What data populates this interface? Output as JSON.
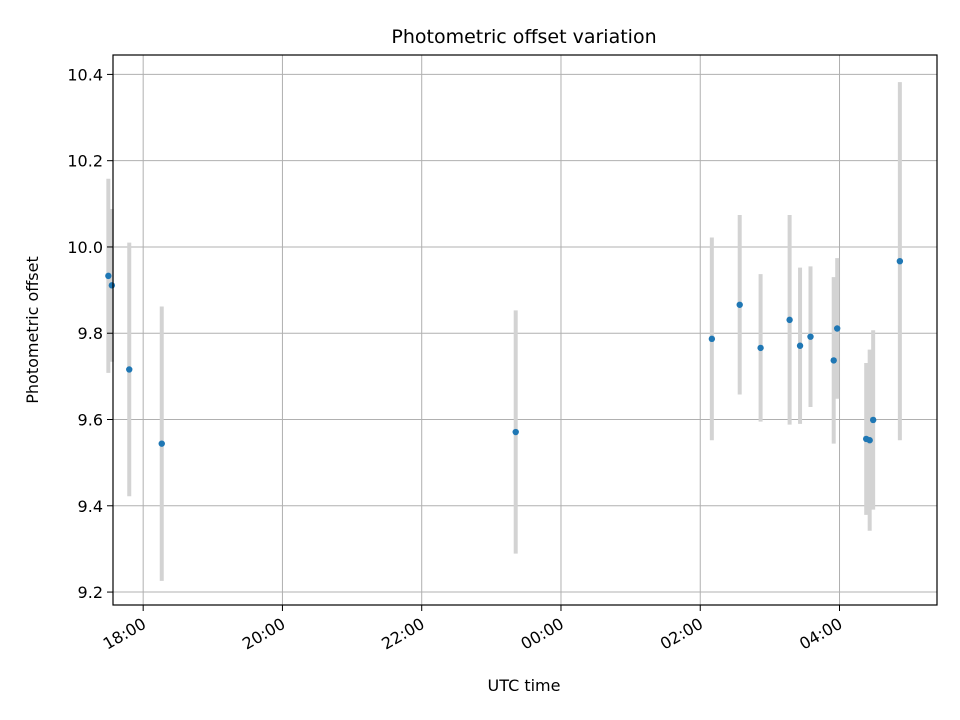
{
  "chart_data": {
    "type": "scatter",
    "title": "Photometric offset variation",
    "xlabel": "UTC time",
    "ylabel": "Photometric offset",
    "x_axis_type": "time",
    "xlim": [
      "17:34",
      "05:24"
    ],
    "ylim": [
      9.17,
      10.445
    ],
    "grid": true,
    "x_ticks": [
      {
        "time": "18:00",
        "label": "18:00"
      },
      {
        "time": "20:00",
        "label": "20:00"
      },
      {
        "time": "22:00",
        "label": "22:00"
      },
      {
        "time": "00:00",
        "label": "00:00"
      },
      {
        "time": "02:00",
        "label": "02:00"
      },
      {
        "time": "04:00",
        "label": "04:00"
      }
    ],
    "y_ticks": [
      {
        "value": 9.2,
        "label": "9.2"
      },
      {
        "value": 9.4,
        "label": "9.4"
      },
      {
        "value": 9.6,
        "label": "9.6"
      },
      {
        "value": 9.8,
        "label": "9.8"
      },
      {
        "value": 10.0,
        "label": "10.0"
      },
      {
        "value": 10.2,
        "label": "10.2"
      },
      {
        "value": 10.4,
        "label": "10.4"
      }
    ],
    "colors": {
      "point": "#1f77b4",
      "errorbar": "#d3d3d3",
      "grid": "#b0b0b0"
    },
    "points": [
      {
        "x": "17:30",
        "y": 9.933,
        "err": 0.225
      },
      {
        "x": "17:33",
        "y": 9.911,
        "err": 0.177
      },
      {
        "x": "17:48",
        "y": 9.716,
        "err": 0.294
      },
      {
        "x": "18:16",
        "y": 9.544,
        "err": 0.318
      },
      {
        "x": "23:21",
        "y": 9.571,
        "err": 0.282
      },
      {
        "x": "02:10",
        "y": 9.787,
        "err": 0.235
      },
      {
        "x": "02:34",
        "y": 9.866,
        "err": 0.208
      },
      {
        "x": "02:52",
        "y": 9.766,
        "err": 0.171
      },
      {
        "x": "03:17",
        "y": 9.831,
        "err": 0.243
      },
      {
        "x": "03:26",
        "y": 9.771,
        "err": 0.181
      },
      {
        "x": "03:35",
        "y": 9.792,
        "err": 0.163
      },
      {
        "x": "03:55",
        "y": 9.737,
        "err": 0.193
      },
      {
        "x": "03:58",
        "y": 9.811,
        "err": 0.163
      },
      {
        "x": "04:23",
        "y": 9.555,
        "err": 0.176
      },
      {
        "x": "04:26",
        "y": 9.552,
        "err": 0.21
      },
      {
        "x": "04:29",
        "y": 9.599,
        "err": 0.208
      },
      {
        "x": "04:52",
        "y": 9.967,
        "err": 0.415
      }
    ]
  }
}
